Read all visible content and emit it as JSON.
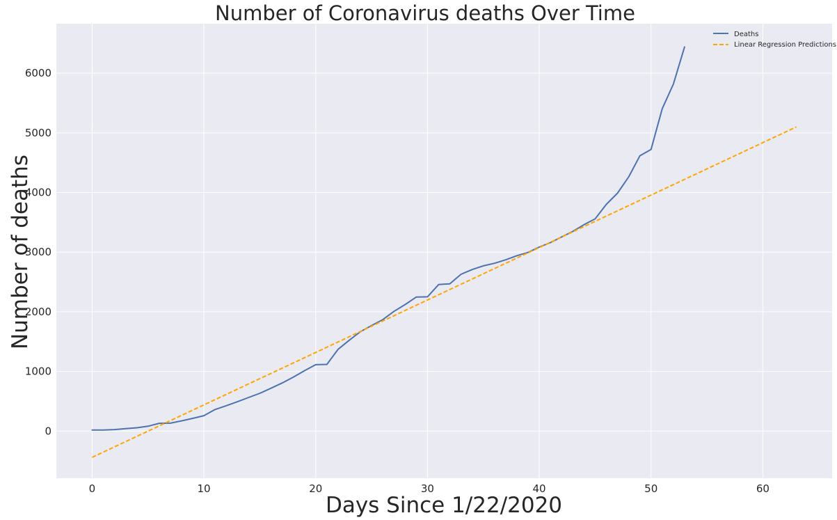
{
  "chart_data": {
    "type": "line",
    "title": "Number of Coronavirus deaths Over Time",
    "xlabel": "Days Since 1/22/2020",
    "ylabel": "Number of deaths",
    "xlim": [
      -3.2,
      66.2
    ],
    "ylim": [
      -790,
      6830
    ],
    "xticks": [
      0,
      10,
      20,
      30,
      40,
      50,
      60
    ],
    "yticks": [
      0,
      1000,
      2000,
      3000,
      4000,
      5000,
      6000
    ],
    "grid": true,
    "legend_position": "top-right",
    "series": [
      {
        "name": "Deaths",
        "style": "solid",
        "color": "#4c72b0",
        "x": [
          0,
          1,
          2,
          3,
          4,
          5,
          6,
          7,
          8,
          9,
          10,
          11,
          12,
          13,
          14,
          15,
          16,
          17,
          18,
          19,
          20,
          21,
          22,
          23,
          24,
          25,
          26,
          27,
          28,
          29,
          30,
          31,
          32,
          33,
          34,
          35,
          36,
          37,
          38,
          39,
          40,
          41,
          42,
          43,
          44,
          45,
          46,
          47,
          48,
          49,
          50,
          51,
          52,
          53
        ],
        "y": [
          17,
          18,
          26,
          42,
          56,
          82,
          131,
          133,
          171,
          213,
          259,
          362,
          426,
          492,
          564,
          634,
          719,
          806,
          906,
          1013,
          1113,
          1118,
          1371,
          1523,
          1666,
          1770,
          1868,
          2007,
          2122,
          2247,
          2251,
          2458,
          2469,
          2629,
          2708,
          2770,
          2814,
          2872,
          2941,
          2996,
          3085,
          3160,
          3254,
          3348,
          3460,
          3558,
          3802,
          3988,
          4262,
          4615,
          4720,
          5404,
          5819,
          6440
        ]
      },
      {
        "name": "Linear Regression Predictions",
        "style": "dashed",
        "color": "#ffa500",
        "x": [
          0,
          63
        ],
        "y": [
          -440,
          5100
        ]
      }
    ]
  }
}
